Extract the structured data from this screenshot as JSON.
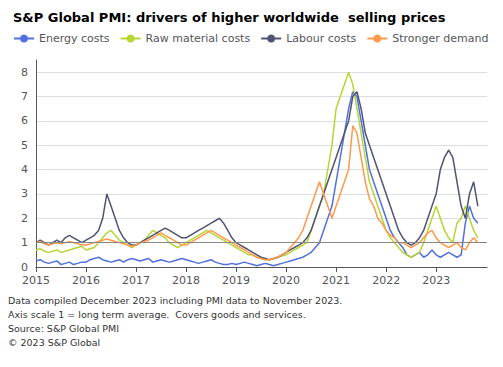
{
  "chart_data": {
    "type": "line",
    "title": "S&P Global PMI: drivers of higher worldwide  selling prices",
    "footnotes": [
      "Data compiled December 2023 including PMI data to November 2023.",
      "Axis scale 1 = long term average.  Covers goods and services.",
      "Source: S&P Global PMI",
      "© 2023 S&P Global"
    ],
    "x": [
      2015,
      2015.0833333333333,
      2015.1666666666667,
      2015.25,
      2015.3333333333333,
      2015.4166666666667,
      2015.5,
      2015.5833333333333,
      2015.6666666666667,
      2015.75,
      2015.8333333333333,
      2015.9166666666667,
      2016,
      2016.0833333333333,
      2016.1666666666667,
      2016.25,
      2016.3333333333333,
      2016.4166666666667,
      2016.5,
      2016.5833333333333,
      2016.6666666666667,
      2016.75,
      2016.8333333333333,
      2016.9166666666667,
      2017,
      2017.0833333333333,
      2017.1666666666667,
      2017.25,
      2017.3333333333333,
      2017.4166666666667,
      2017.5,
      2017.5833333333333,
      2017.6666666666667,
      2017.75,
      2017.8333333333333,
      2017.9166666666667,
      2018,
      2018.0833333333333,
      2018.1666666666667,
      2018.25,
      2018.3333333333333,
      2018.4166666666667,
      2018.5,
      2018.5833333333333,
      2018.6666666666667,
      2018.75,
      2018.8333333333333,
      2018.9166666666667,
      2019,
      2019.0833333333333,
      2019.1666666666667,
      2019.25,
      2019.3333333333333,
      2019.4166666666667,
      2019.5,
      2019.5833333333333,
      2019.6666666666667,
      2019.75,
      2019.8333333333333,
      2019.9166666666667,
      2020,
      2020.0833333333333,
      2020.1666666666667,
      2020.25,
      2020.3333333333333,
      2020.4166666666667,
      2020.5,
      2020.5833333333333,
      2020.6666666666667,
      2020.75,
      2020.8333333333333,
      2020.9166666666667,
      2021,
      2021.0833333333333,
      2021.1666666666667,
      2021.25,
      2021.3333333333333,
      2021.4166666666667,
      2021.5,
      2021.5833333333333,
      2021.6666666666667,
      2021.75,
      2021.8333333333333,
      2021.9166666666667,
      2022,
      2022.0833333333333,
      2022.1666666666667,
      2022.25,
      2022.3333333333333,
      2022.4166666666667,
      2022.5,
      2022.5833333333333,
      2022.6666666666667,
      2022.75,
      2022.8333333333333,
      2022.9166666666667,
      2023,
      2023.0833333333333,
      2023.1666666666667,
      2023.25,
      2023.3333333333333,
      2023.4166666666667,
      2023.5,
      2023.5833333333333,
      2023.6666666666667,
      2023.75,
      2023.8333333333333
    ],
    "series": [
      {
        "name": "Energy costs",
        "values": [
          0.25,
          0.3,
          0.2,
          0.15,
          0.2,
          0.25,
          0.1,
          0.15,
          0.2,
          0.1,
          0.15,
          0.2,
          0.2,
          0.3,
          0.35,
          0.4,
          0.3,
          0.25,
          0.2,
          0.25,
          0.3,
          0.2,
          0.3,
          0.35,
          0.3,
          0.25,
          0.3,
          0.35,
          0.2,
          0.25,
          0.3,
          0.25,
          0.2,
          0.25,
          0.3,
          0.35,
          0.3,
          0.25,
          0.2,
          0.15,
          0.2,
          0.25,
          0.3,
          0.2,
          0.15,
          0.1,
          0.1,
          0.15,
          0.1,
          0.15,
          0.2,
          0.15,
          0.1,
          0.05,
          0.1,
          0.15,
          0.1,
          0.05,
          0.1,
          0.15,
          0.2,
          0.25,
          0.3,
          0.35,
          0.4,
          0.5,
          0.6,
          0.8,
          1.0,
          1.5,
          2.0,
          2.5,
          3.5,
          4.5,
          5.5,
          6.5,
          7.2,
          7.0,
          6.0,
          5.0,
          4.0,
          3.5,
          3.0,
          2.5,
          2.0,
          1.5,
          1.2,
          1.0,
          0.8,
          0.5,
          0.4,
          0.5,
          0.6,
          0.4,
          0.5,
          0.7,
          0.5,
          0.4,
          0.5,
          0.6,
          0.5,
          0.4,
          0.5,
          1.8,
          2.5,
          2.0,
          1.8
        ]
      },
      {
        "name": "Raw material costs",
        "values": [
          0.7,
          0.75,
          0.65,
          0.6,
          0.65,
          0.7,
          0.6,
          0.65,
          0.7,
          0.75,
          0.8,
          0.85,
          0.7,
          0.75,
          0.8,
          1.0,
          1.2,
          1.4,
          1.5,
          1.3,
          1.1,
          1.0,
          0.9,
          0.8,
          0.9,
          1.0,
          1.1,
          1.3,
          1.5,
          1.4,
          1.3,
          1.2,
          1.0,
          0.9,
          0.8,
          0.9,
          1.0,
          1.1,
          1.2,
          1.3,
          1.4,
          1.5,
          1.4,
          1.3,
          1.2,
          1.1,
          1.0,
          0.9,
          0.8,
          0.7,
          0.6,
          0.5,
          0.5,
          0.4,
          0.35,
          0.3,
          0.3,
          0.35,
          0.4,
          0.45,
          0.5,
          0.6,
          0.7,
          0.8,
          0.9,
          1.0,
          1.5,
          2.0,
          2.5,
          3.0,
          4.0,
          5.0,
          6.5,
          7.0,
          7.5,
          8.0,
          7.5,
          6.5,
          5.5,
          4.5,
          3.5,
          3.0,
          2.5,
          2.0,
          1.5,
          1.2,
          1.0,
          0.8,
          0.6,
          0.5,
          0.4,
          0.5,
          0.6,
          1.0,
          1.5,
          2.0,
          2.5,
          2.0,
          1.5,
          1.2,
          1.0,
          1.8,
          2.0,
          2.5,
          2.0,
          1.5,
          1.2
        ]
      },
      {
        "name": "Labour costs",
        "values": [
          1.0,
          1.1,
          1.0,
          0.9,
          1.0,
          1.1,
          1.0,
          1.2,
          1.3,
          1.2,
          1.1,
          1.0,
          1.1,
          1.2,
          1.3,
          1.5,
          2.0,
          3.0,
          2.5,
          2.0,
          1.5,
          1.2,
          1.0,
          0.9,
          0.9,
          1.0,
          1.1,
          1.2,
          1.3,
          1.4,
          1.5,
          1.6,
          1.5,
          1.4,
          1.3,
          1.2,
          1.2,
          1.3,
          1.4,
          1.5,
          1.6,
          1.7,
          1.8,
          1.9,
          2.0,
          1.8,
          1.5,
          1.2,
          1.0,
          0.9,
          0.8,
          0.7,
          0.6,
          0.5,
          0.4,
          0.35,
          0.3,
          0.35,
          0.4,
          0.5,
          0.6,
          0.7,
          0.8,
          0.9,
          1.0,
          1.2,
          1.5,
          2.0,
          2.5,
          3.0,
          3.5,
          4.0,
          4.5,
          5.0,
          5.5,
          6.0,
          7.0,
          7.2,
          6.5,
          5.5,
          5.0,
          4.5,
          4.0,
          3.5,
          3.0,
          2.5,
          2.0,
          1.5,
          1.2,
          1.0,
          0.9,
          1.0,
          1.2,
          1.5,
          2.0,
          2.5,
          3.0,
          4.0,
          4.5,
          4.8,
          4.5,
          3.5,
          2.5,
          2.0,
          3.0,
          3.5,
          2.5
        ]
      },
      {
        "name": "Stronger demand",
        "values": [
          1.0,
          1.05,
          0.95,
          0.9,
          0.95,
          1.0,
          0.95,
          1.0,
          1.05,
          1.0,
          0.95,
          0.9,
          0.9,
          0.95,
          1.0,
          1.05,
          1.1,
          1.15,
          1.1,
          1.05,
          1.0,
          0.95,
          0.9,
          0.85,
          0.9,
          1.0,
          1.05,
          1.1,
          1.2,
          1.3,
          1.4,
          1.3,
          1.2,
          1.1,
          1.0,
          0.9,
          0.9,
          1.0,
          1.1,
          1.2,
          1.3,
          1.4,
          1.5,
          1.4,
          1.3,
          1.2,
          1.1,
          1.0,
          0.9,
          0.8,
          0.7,
          0.6,
          0.5,
          0.4,
          0.35,
          0.3,
          0.3,
          0.35,
          0.4,
          0.5,
          0.6,
          0.8,
          1.0,
          1.2,
          1.5,
          2.0,
          2.5,
          3.0,
          3.5,
          3.0,
          2.5,
          2.0,
          2.5,
          3.0,
          3.5,
          4.0,
          5.8,
          5.5,
          4.5,
          3.5,
          2.8,
          2.5,
          2.0,
          1.8,
          1.5,
          1.3,
          1.2,
          1.0,
          1.0,
          0.9,
          0.8,
          0.9,
          1.0,
          1.2,
          1.4,
          1.5,
          1.2,
          1.0,
          0.9,
          0.8,
          0.9,
          1.0,
          0.8,
          0.7,
          1.0,
          1.2,
          1.0
        ]
      }
    ],
    "hline_y": 1,
    "xlim": [
      2015,
      2024.0166666666667
    ],
    "xticks": [
      2015,
      2016,
      2017,
      2018,
      2019,
      2020,
      2021,
      2022,
      2023
    ],
    "ylim": [
      0,
      8.5
    ],
    "yticks": [
      0,
      1,
      2,
      3,
      4,
      5,
      6,
      7,
      8
    ],
    "grid": true,
    "legend": "upper left"
  }
}
